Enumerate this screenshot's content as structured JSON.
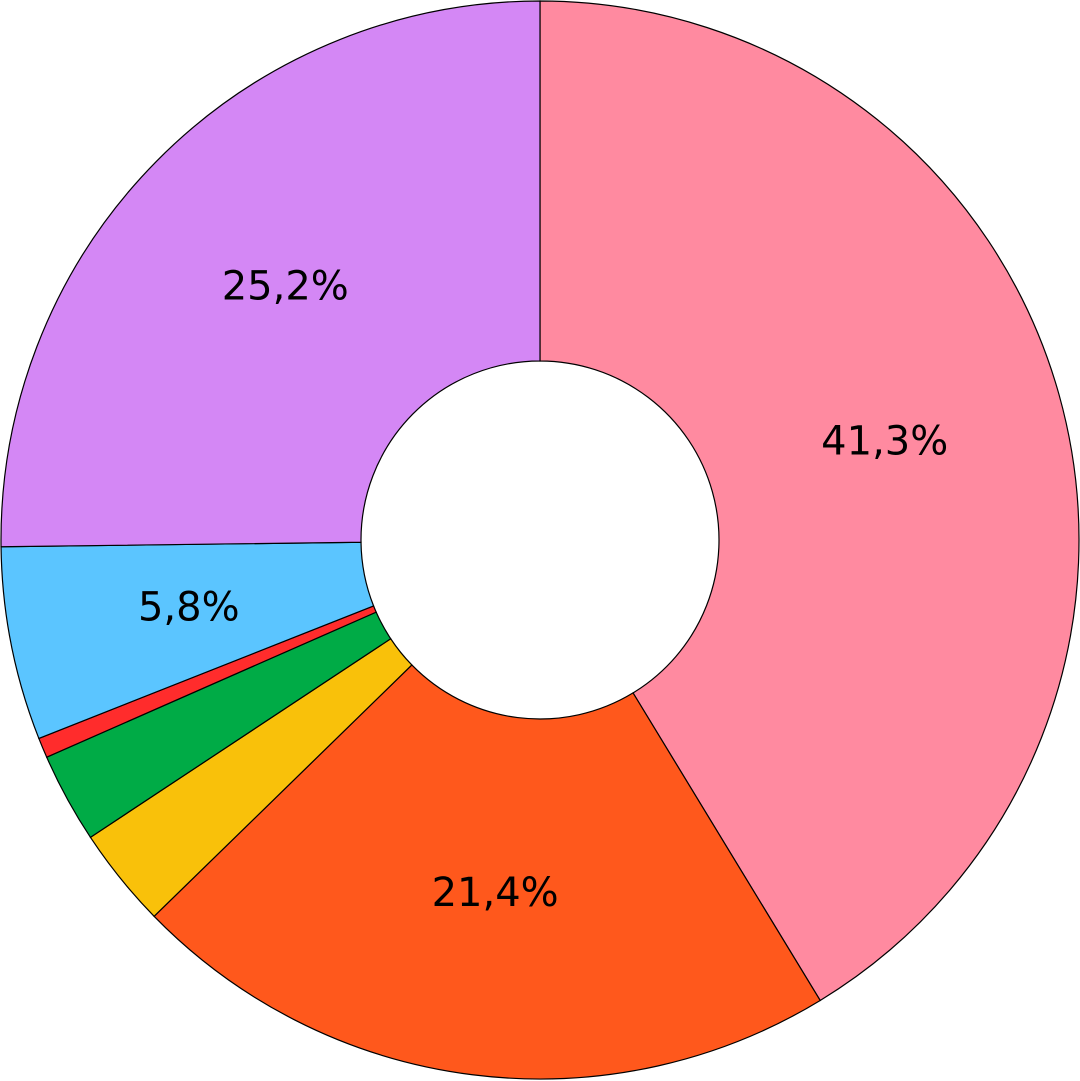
{
  "chart_data": {
    "type": "donut",
    "values": [
      41.3,
      21.4,
      3.0,
      2.7,
      0.6,
      5.8,
      25.2
    ],
    "value_labels": [
      "41,3%",
      "21,4%",
      null,
      null,
      null,
      "5,8%",
      "25,2%"
    ],
    "colors": [
      "#ff8aa0",
      "#ff581c",
      "#f9c10a",
      "#00ab46",
      "#ff2c2c",
      "#5bc5ff",
      "#d487f5"
    ]
  }
}
